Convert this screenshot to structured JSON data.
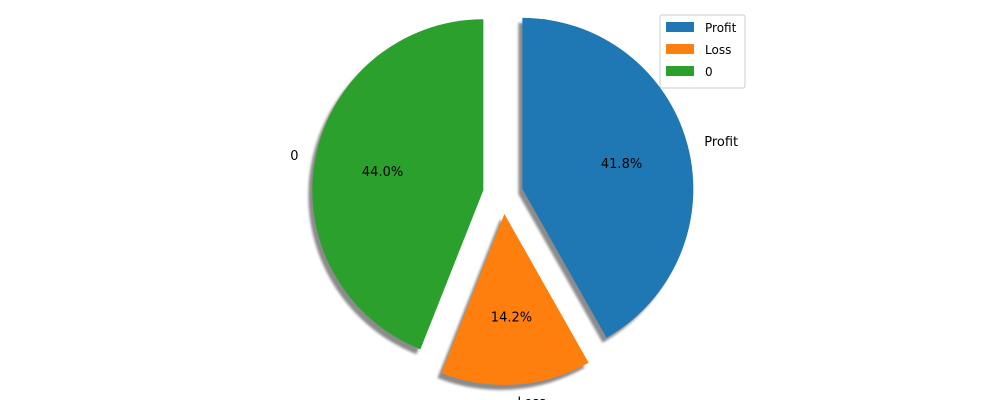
{
  "chart_data": {
    "type": "pie",
    "title": "",
    "categories": [
      "Profit",
      "Loss",
      "0"
    ],
    "values": [
      41.8,
      14.2,
      44.0
    ],
    "percent_labels": [
      "41.8%",
      "14.2%",
      "44.0%"
    ],
    "colors": [
      "#1f77b4",
      "#ff7f0e",
      "#2ca02c"
    ],
    "exploded": true,
    "shadow": true,
    "start_angle_deg": 90,
    "direction": "clockwise",
    "legend": {
      "position": "top-right",
      "entries": [
        "Profit",
        "Loss",
        "0"
      ]
    }
  }
}
